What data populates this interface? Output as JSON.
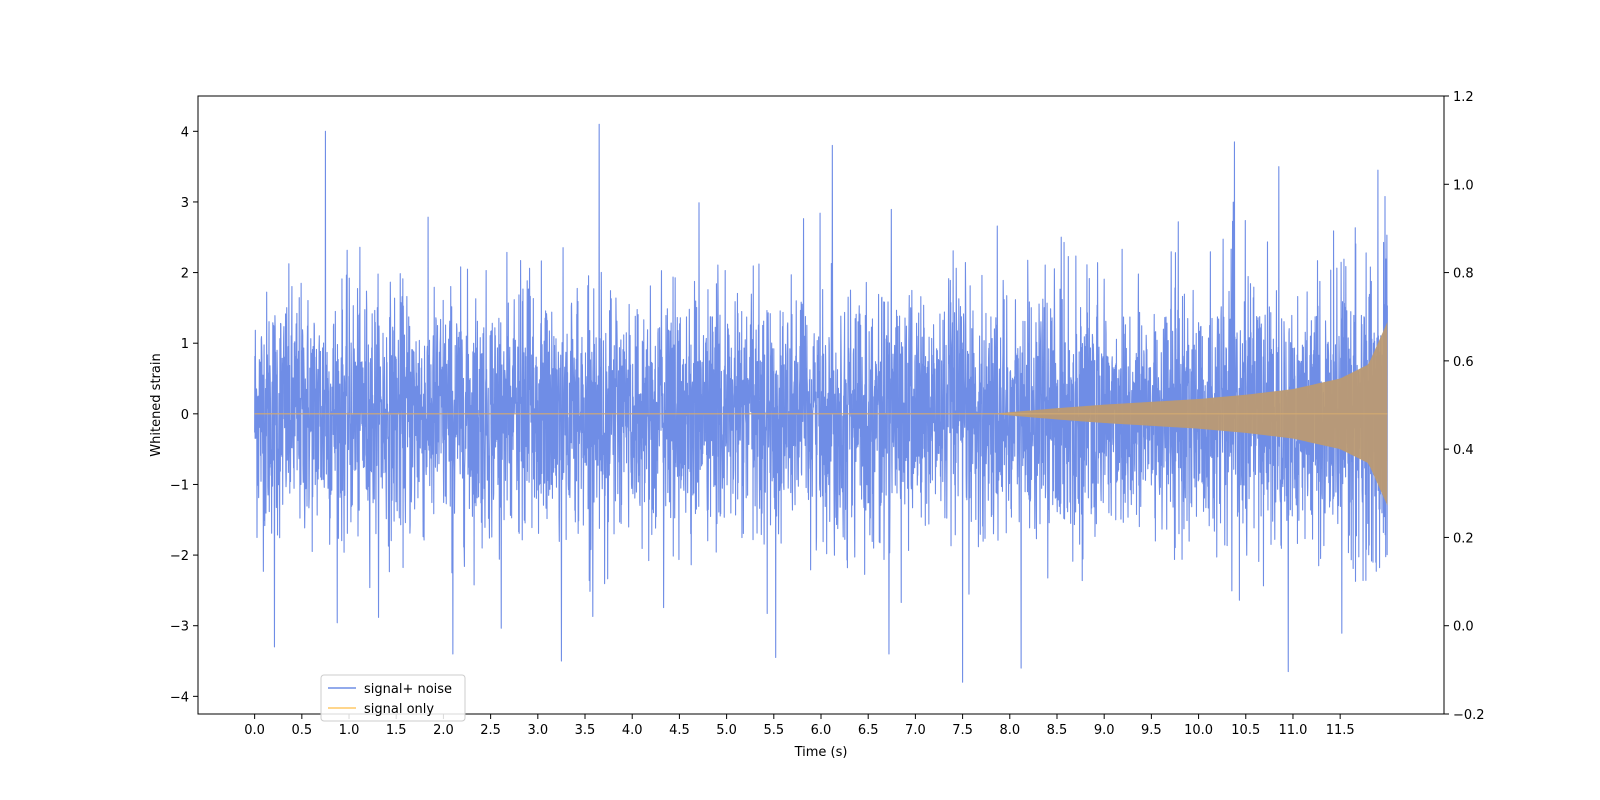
{
  "chart_data": {
    "type": "line",
    "title": "",
    "xlabel": "Time (s)",
    "ylabel": "Whitened strain",
    "ylabel_right": "",
    "xlim": [
      -0.6,
      12.6
    ],
    "ylim": [
      -4.25,
      4.5
    ],
    "ylim_right": [
      -0.2,
      1.2
    ],
    "x_ticks": [
      0.0,
      0.5,
      1.0,
      1.5,
      2.0,
      2.5,
      3.0,
      3.5,
      4.0,
      4.5,
      5.0,
      5.5,
      6.0,
      6.5,
      7.0,
      7.5,
      8.0,
      8.5,
      9.0,
      9.5,
      10.0,
      10.5,
      11.0,
      11.5
    ],
    "x_tick_labels": [
      "0.0",
      "0.5",
      "1.0",
      "1.5",
      "2.0",
      "2.5",
      "3.0",
      "3.5",
      "4.0",
      "4.5",
      "5.0",
      "5.5",
      "6.0",
      "6.5",
      "7.0",
      "7.5",
      "8.0",
      "8.5",
      "9.0",
      "9.5",
      "10.0",
      "10.5",
      "11.0",
      "11.5"
    ],
    "y_ticks": [
      -4,
      -3,
      -2,
      -1,
      0,
      1,
      2,
      3,
      4
    ],
    "y_tick_labels": [
      "−4",
      "−3",
      "−2",
      "−1",
      "0",
      "1",
      "2",
      "3",
      "4"
    ],
    "y_right_ticks": [
      -0.2,
      0.0,
      0.2,
      0.4,
      0.6,
      0.8,
      1.0,
      1.2
    ],
    "y_right_tick_labels": [
      "−0.2",
      "0.0",
      "0.2",
      "0.4",
      "0.6",
      "0.8",
      "1.0",
      "1.2"
    ],
    "grid": false,
    "legend_position": "lower-left",
    "series": [
      {
        "name": "signal+ noise",
        "color": "#6f8de6",
        "duration": 12.0,
        "noise_std": 0.85,
        "envelope": {
          "t": [
            0,
            2,
            4,
            6,
            7.8,
            8.5,
            9.0,
            9.5,
            10.0,
            10.5,
            11.0,
            11.5,
            11.8,
            12.0
          ],
          "amp": [
            0.0,
            0.0,
            0.0,
            0.0,
            0.0,
            0.08,
            0.13,
            0.17,
            0.21,
            0.27,
            0.35,
            0.5,
            0.7,
            1.3
          ]
        },
        "peaks": [
          {
            "x": 0.75,
            "y": 4.0
          },
          {
            "x": 3.65,
            "y": 4.1
          },
          {
            "x": 6.12,
            "y": 3.8
          },
          {
            "x": 10.38,
            "y": 3.85
          },
          {
            "x": 10.85,
            "y": 3.5
          },
          {
            "x": 11.9,
            "y": 3.45
          },
          {
            "x": 0.21,
            "y": -3.3
          },
          {
            "x": 3.25,
            "y": -3.5
          },
          {
            "x": 5.52,
            "y": -3.45
          },
          {
            "x": 7.5,
            "y": -3.8
          },
          {
            "x": 8.12,
            "y": -3.6
          },
          {
            "x": 10.95,
            "y": -3.65
          },
          {
            "x": 2.1,
            "y": -3.4
          },
          {
            "x": 6.72,
            "y": -3.4
          }
        ]
      },
      {
        "name": "signal only",
        "color": "#ffc966",
        "envelope": {
          "t": [
            0,
            7.8,
            8.5,
            9.0,
            9.5,
            10.0,
            10.5,
            11.0,
            11.5,
            11.8,
            12.0
          ],
          "amp": [
            0.0,
            0.0,
            0.08,
            0.13,
            0.17,
            0.21,
            0.27,
            0.35,
            0.5,
            0.7,
            1.3
          ]
        }
      }
    ]
  }
}
